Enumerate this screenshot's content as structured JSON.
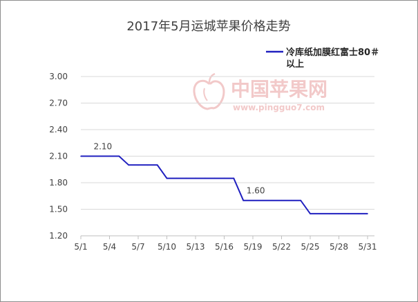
{
  "watermark": {
    "brand": "中国苹果网",
    "site": "www.pingguo7.com"
  },
  "colors": {
    "series": "#1f1fbf",
    "watermark": "#f2c9c9"
  },
  "chart_data": {
    "type": "line",
    "title": "2017年5月运城苹果价格走势",
    "xlabel": "",
    "ylabel": "",
    "ylim": [
      1.2,
      3.0
    ],
    "yticks": [
      "3.00",
      "2.70",
      "2.40",
      "2.10",
      "1.80",
      "1.50",
      "1.20"
    ],
    "ytick_values": [
      3.0,
      2.7,
      2.4,
      2.1,
      1.8,
      1.5,
      1.2
    ],
    "xlim": [
      1,
      31
    ],
    "xticks": [
      "5/1",
      "5/4",
      "5/7",
      "5/10",
      "5/13",
      "5/16",
      "5/19",
      "5/22",
      "5/25",
      "5/28",
      "5/31"
    ],
    "xtick_values": [
      1,
      4,
      7,
      10,
      13,
      16,
      19,
      22,
      25,
      28,
      31
    ],
    "grid": true,
    "legend_position": "top-right",
    "series": [
      {
        "name": "冷库纸加膜红富士80＃以上",
        "points": [
          [
            1,
            2.1
          ],
          [
            2,
            2.1
          ],
          [
            3,
            2.1
          ],
          [
            4,
            2.1
          ],
          [
            5,
            2.1
          ],
          [
            6,
            2.0
          ],
          [
            7,
            2.0
          ],
          [
            8,
            2.0
          ],
          [
            9,
            2.0
          ],
          [
            10,
            1.85
          ],
          [
            11,
            1.85
          ],
          [
            12,
            1.85
          ],
          [
            13,
            1.85
          ],
          [
            14,
            1.85
          ],
          [
            15,
            1.85
          ],
          [
            16,
            1.85
          ],
          [
            17,
            1.85
          ],
          [
            18,
            1.6
          ],
          [
            19,
            1.6
          ],
          [
            20,
            1.6
          ],
          [
            21,
            1.6
          ],
          [
            22,
            1.6
          ],
          [
            23,
            1.6
          ],
          [
            24,
            1.6
          ],
          [
            25,
            1.45
          ],
          [
            26,
            1.45
          ],
          [
            27,
            1.45
          ],
          [
            28,
            1.45
          ],
          [
            29,
            1.45
          ],
          [
            30,
            1.45
          ],
          [
            31,
            1.45
          ]
        ]
      }
    ],
    "annotations": [
      {
        "x": 2,
        "y": 2.1,
        "text": "2.10"
      },
      {
        "x": 18,
        "y": 1.6,
        "text": "1.60"
      }
    ]
  }
}
